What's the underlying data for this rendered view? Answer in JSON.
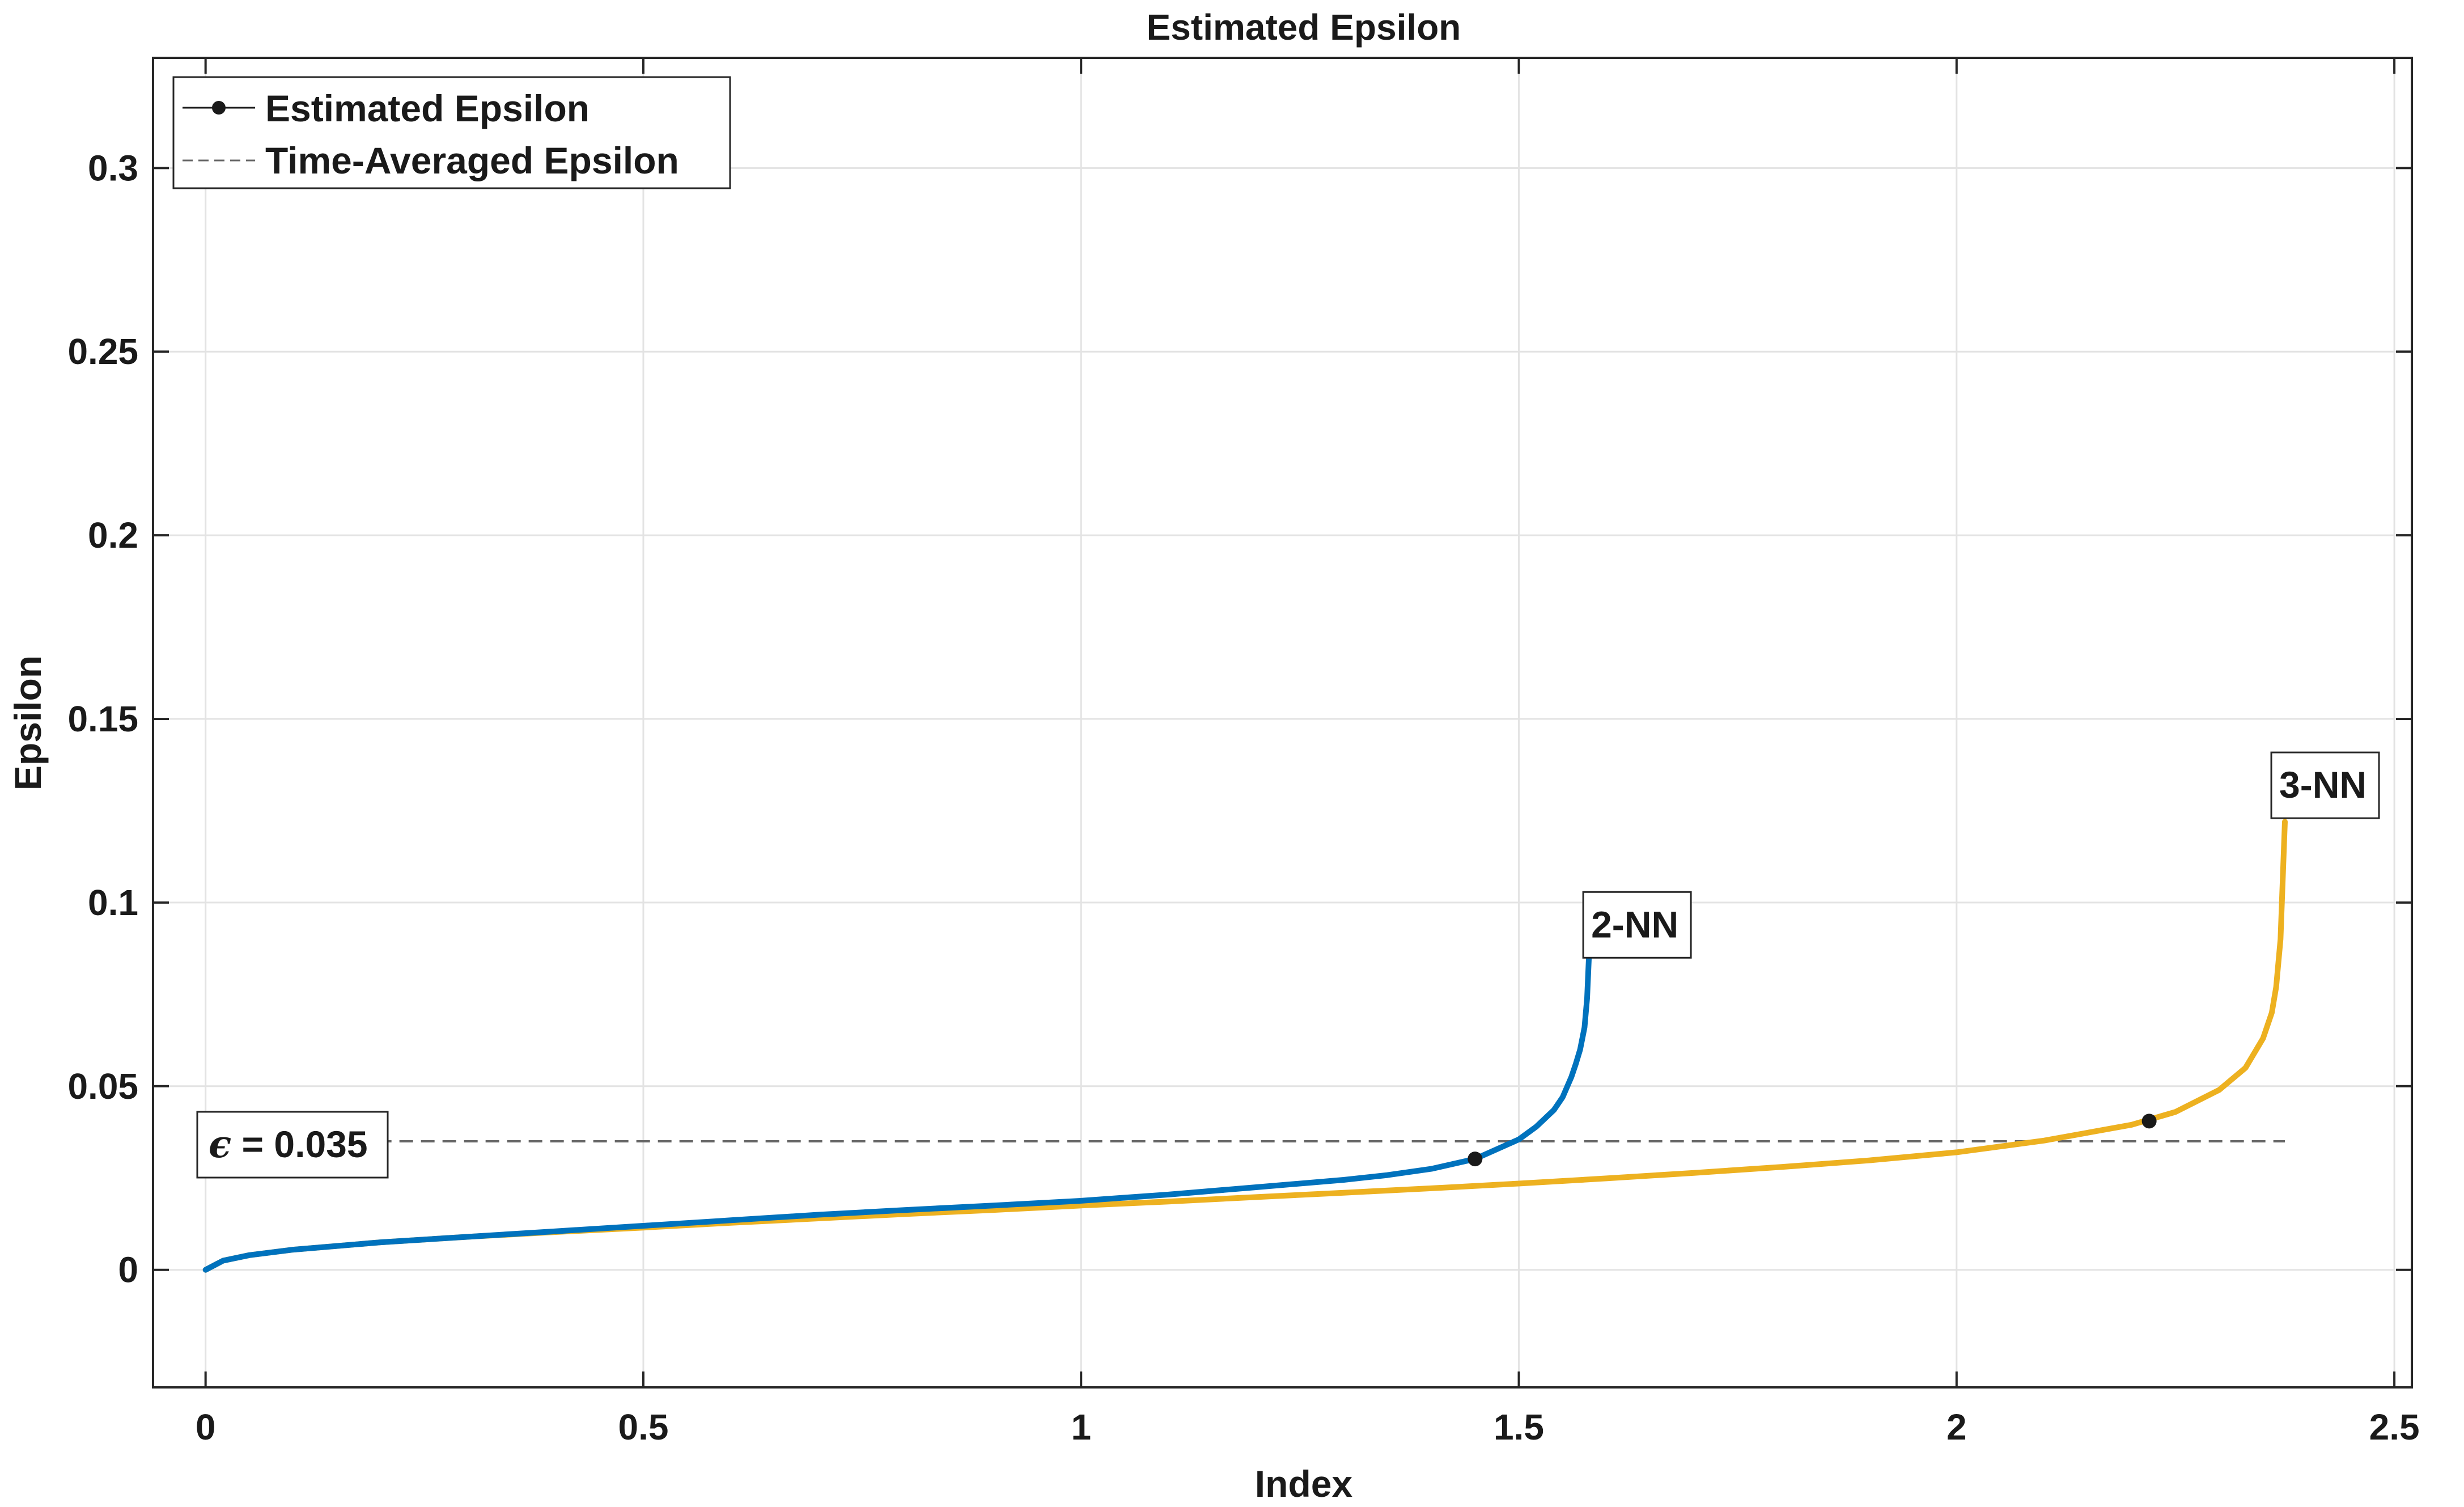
{
  "chart_data": {
    "type": "line",
    "title": "Estimated Epsilon",
    "xlabel": "Index",
    "ylabel": "Epsilon",
    "xlim": [
      -0.06,
      2.52
    ],
    "ylim": [
      -0.032,
      0.33
    ],
    "xticks": [
      0,
      0.5,
      1,
      1.5,
      2,
      2.5
    ],
    "xtick_labels": [
      "0",
      "0.5",
      "1",
      "1.5",
      "2",
      "2.5"
    ],
    "yticks": [
      0,
      0.05,
      0.1,
      0.15,
      0.2,
      0.25,
      0.3
    ],
    "ytick_labels": [
      "0",
      "0.05",
      "0.1",
      "0.15",
      "0.2",
      "0.25",
      "0.3"
    ],
    "grid": true,
    "legend": {
      "position": "top-left",
      "entries": [
        "Estimated Epsilon",
        "Time-Averaged Epsilon"
      ]
    },
    "series": [
      {
        "label": "2-NN",
        "color": "#0072BD",
        "x": [
          0,
          0.02,
          0.05,
          0.1,
          0.2,
          0.3,
          0.4,
          0.5,
          0.6,
          0.7,
          0.8,
          0.9,
          1.0,
          1.1,
          1.2,
          1.3,
          1.35,
          1.4,
          1.45,
          1.5,
          1.52,
          1.54,
          1.55,
          1.56,
          1.565,
          1.57,
          1.575,
          1.578,
          1.58
        ],
        "y": [
          0,
          0.0025,
          0.004,
          0.0055,
          0.0075,
          0.009,
          0.0105,
          0.012,
          0.0135,
          0.015,
          0.0163,
          0.0175,
          0.0188,
          0.0205,
          0.0225,
          0.0245,
          0.0258,
          0.0275,
          0.0302,
          0.0355,
          0.039,
          0.0435,
          0.047,
          0.0525,
          0.056,
          0.06,
          0.066,
          0.074,
          0.085
        ]
      },
      {
        "label": "3-NN",
        "color": "#EDB120",
        "x": [
          0,
          0.02,
          0.05,
          0.1,
          0.2,
          0.3,
          0.4,
          0.5,
          0.6,
          0.7,
          0.8,
          0.9,
          1.0,
          1.1,
          1.2,
          1.3,
          1.4,
          1.5,
          1.6,
          1.7,
          1.8,
          1.9,
          2.0,
          2.1,
          2.2,
          2.25,
          2.3,
          2.33,
          2.35,
          2.36,
          2.365,
          2.37,
          2.375
        ],
        "y": [
          0,
          0.0025,
          0.004,
          0.0055,
          0.0075,
          0.009,
          0.0103,
          0.0115,
          0.0128,
          0.014,
          0.0152,
          0.0163,
          0.0175,
          0.0186,
          0.0198,
          0.021,
          0.0222,
          0.0235,
          0.0249,
          0.0264,
          0.028,
          0.0298,
          0.032,
          0.0352,
          0.0395,
          0.043,
          0.049,
          0.055,
          0.063,
          0.07,
          0.077,
          0.09,
          0.122
        ]
      }
    ],
    "time_averaged_epsilon": {
      "y": 0.035,
      "x_range": [
        0,
        2.375
      ],
      "style": "dashed",
      "color": "#666666"
    },
    "markers": [
      {
        "x": 1.45,
        "y": 0.0302
      },
      {
        "x": 2.22,
        "y": 0.0405
      }
    ],
    "annotations": [
      {
        "text": "2-NN",
        "x": 1.58,
        "y": 0.093
      },
      {
        "text": "3-NN",
        "x": 2.375,
        "y": 0.131
      },
      {
        "text_symbol": "ϵ",
        "text": " = 0.035"
      }
    ]
  }
}
